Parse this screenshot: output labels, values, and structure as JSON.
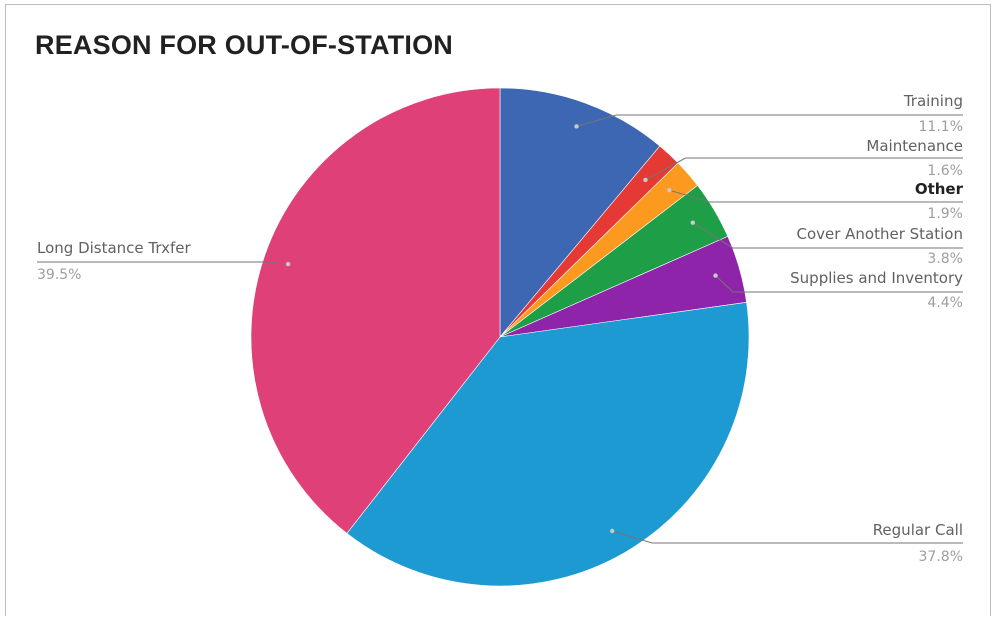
{
  "chart_data": {
    "type": "pie",
    "title": "REASON FOR OUT-OF-STATION",
    "slices": [
      {
        "label": "Training",
        "percent_label": "11.1%",
        "value": 11.1,
        "color": "#3d66b3"
      },
      {
        "label": "Maintenance",
        "percent_label": "1.6%",
        "value": 1.6,
        "color": "#e53935"
      },
      {
        "label": "Other",
        "percent_label": "1.9%",
        "value": 1.9,
        "color": "#fb9a1e",
        "bold": true
      },
      {
        "label": "Cover Another Station",
        "percent_label": "3.8%",
        "value": 3.8,
        "color": "#1e9e47"
      },
      {
        "label": "Supplies and Inventory",
        "percent_label": "4.4%",
        "value": 4.4,
        "color": "#8e24aa"
      },
      {
        "label": "Regular Call",
        "percent_label": "37.8%",
        "value": 37.8,
        "color": "#1e9ad3"
      },
      {
        "label": "Long Distance Trxfer",
        "percent_label": "39.5%",
        "value": 39.5,
        "color": "#de4077"
      }
    ]
  }
}
